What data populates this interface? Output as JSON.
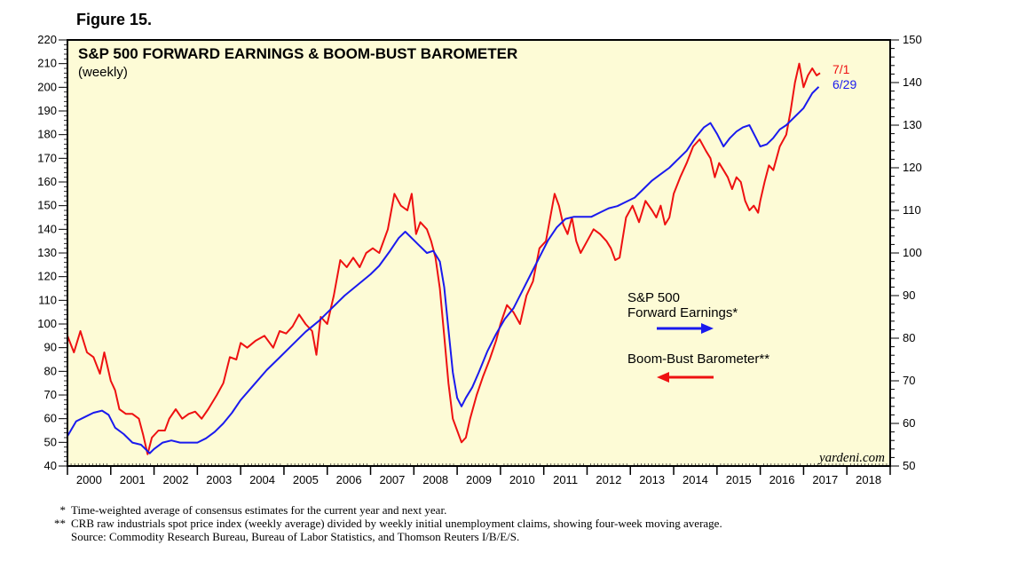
{
  "figure_label": "Figure 15.",
  "chart_data": {
    "type": "line",
    "title": "S&P 500 FORWARD EARNINGS & BOOM-BUST BAROMETER",
    "subtitle": "(weekly)",
    "watermark": "yardeni.com",
    "x_ticks": [
      "2000",
      "2001",
      "2002",
      "2003",
      "2004",
      "2005",
      "2006",
      "2007",
      "2008",
      "2009",
      "2010",
      "2011",
      "2012",
      "2013",
      "2014",
      "2015",
      "2016",
      "2017",
      "2018"
    ],
    "x_range": [
      2000,
      2019
    ],
    "left_axis": {
      "range": [
        40,
        220
      ],
      "ticks": [
        40,
        50,
        60,
        70,
        80,
        90,
        100,
        110,
        120,
        130,
        140,
        150,
        160,
        170,
        180,
        190,
        200,
        210,
        220
      ]
    },
    "right_axis": {
      "range": [
        50,
        150
      ],
      "ticks": [
        50,
        60,
        70,
        80,
        90,
        100,
        110,
        120,
        130,
        140,
        150
      ]
    },
    "background": "#fdfbd6",
    "series": [
      {
        "name": "Boom-Bust Barometer",
        "note": "**",
        "axis": "left",
        "color": "#ee1111",
        "end_label": "7/1",
        "points": [
          [
            2000.0,
            95
          ],
          [
            2000.15,
            88
          ],
          [
            2000.3,
            97
          ],
          [
            2000.45,
            88
          ],
          [
            2000.6,
            86
          ],
          [
            2000.75,
            79
          ],
          [
            2000.85,
            88
          ],
          [
            2001.0,
            76
          ],
          [
            2001.1,
            72
          ],
          [
            2001.2,
            64
          ],
          [
            2001.35,
            62
          ],
          [
            2001.5,
            62
          ],
          [
            2001.65,
            60
          ],
          [
            2001.75,
            53
          ],
          [
            2001.85,
            45
          ],
          [
            2001.95,
            52
          ],
          [
            2002.1,
            55
          ],
          [
            2002.25,
            55
          ],
          [
            2002.35,
            60
          ],
          [
            2002.5,
            64
          ],
          [
            2002.65,
            60
          ],
          [
            2002.8,
            62
          ],
          [
            2002.95,
            63
          ],
          [
            2003.1,
            60
          ],
          [
            2003.25,
            64
          ],
          [
            2003.45,
            70
          ],
          [
            2003.6,
            75
          ],
          [
            2003.75,
            86
          ],
          [
            2003.9,
            85
          ],
          [
            2004.0,
            92
          ],
          [
            2004.15,
            90
          ],
          [
            2004.35,
            93
          ],
          [
            2004.55,
            95
          ],
          [
            2004.75,
            90
          ],
          [
            2004.9,
            97
          ],
          [
            2005.05,
            96
          ],
          [
            2005.2,
            99
          ],
          [
            2005.35,
            104
          ],
          [
            2005.5,
            100
          ],
          [
            2005.65,
            97
          ],
          [
            2005.75,
            87
          ],
          [
            2005.85,
            103
          ],
          [
            2006.0,
            100
          ],
          [
            2006.15,
            112
          ],
          [
            2006.3,
            127
          ],
          [
            2006.45,
            124
          ],
          [
            2006.6,
            128
          ],
          [
            2006.75,
            124
          ],
          [
            2006.9,
            130
          ],
          [
            2007.05,
            132
          ],
          [
            2007.2,
            130
          ],
          [
            2007.4,
            140
          ],
          [
            2007.55,
            155
          ],
          [
            2007.7,
            150
          ],
          [
            2007.85,
            148
          ],
          [
            2007.95,
            155
          ],
          [
            2008.05,
            138
          ],
          [
            2008.15,
            143
          ],
          [
            2008.3,
            140
          ],
          [
            2008.4,
            135
          ],
          [
            2008.5,
            128
          ],
          [
            2008.6,
            115
          ],
          [
            2008.7,
            95
          ],
          [
            2008.8,
            75
          ],
          [
            2008.9,
            60
          ],
          [
            2009.0,
            55
          ],
          [
            2009.1,
            50
          ],
          [
            2009.2,
            52
          ],
          [
            2009.3,
            60
          ],
          [
            2009.45,
            70
          ],
          [
            2009.6,
            78
          ],
          [
            2009.75,
            85
          ],
          [
            2009.9,
            93
          ],
          [
            2010.0,
            100
          ],
          [
            2010.15,
            108
          ],
          [
            2010.3,
            105
          ],
          [
            2010.45,
            100
          ],
          [
            2010.6,
            112
          ],
          [
            2010.75,
            118
          ],
          [
            2010.9,
            132
          ],
          [
            2011.05,
            135
          ],
          [
            2011.15,
            145
          ],
          [
            2011.25,
            155
          ],
          [
            2011.35,
            150
          ],
          [
            2011.45,
            142
          ],
          [
            2011.55,
            138
          ],
          [
            2011.65,
            145
          ],
          [
            2011.75,
            135
          ],
          [
            2011.85,
            130
          ],
          [
            2012.0,
            135
          ],
          [
            2012.15,
            140
          ],
          [
            2012.3,
            138
          ],
          [
            2012.45,
            135
          ],
          [
            2012.55,
            132
          ],
          [
            2012.65,
            127
          ],
          [
            2012.75,
            128
          ],
          [
            2012.9,
            145
          ],
          [
            2013.05,
            150
          ],
          [
            2013.2,
            143
          ],
          [
            2013.35,
            152
          ],
          [
            2013.5,
            148
          ],
          [
            2013.6,
            145
          ],
          [
            2013.7,
            150
          ],
          [
            2013.8,
            142
          ],
          [
            2013.9,
            145
          ],
          [
            2014.0,
            155
          ],
          [
            2014.15,
            162
          ],
          [
            2014.3,
            168
          ],
          [
            2014.45,
            175
          ],
          [
            2014.6,
            178
          ],
          [
            2014.75,
            173
          ],
          [
            2014.85,
            170
          ],
          [
            2014.95,
            162
          ],
          [
            2015.05,
            168
          ],
          [
            2015.15,
            165
          ],
          [
            2015.25,
            162
          ],
          [
            2015.35,
            157
          ],
          [
            2015.45,
            162
          ],
          [
            2015.55,
            160
          ],
          [
            2015.65,
            152
          ],
          [
            2015.75,
            148
          ],
          [
            2015.85,
            150
          ],
          [
            2015.95,
            147
          ],
          [
            2016.0,
            152
          ],
          [
            2016.1,
            160
          ],
          [
            2016.2,
            167
          ],
          [
            2016.3,
            165
          ],
          [
            2016.45,
            175
          ],
          [
            2016.6,
            180
          ],
          [
            2016.7,
            190
          ],
          [
            2016.8,
            202
          ],
          [
            2016.9,
            210
          ],
          [
            2017.0,
            200
          ],
          [
            2017.1,
            205
          ],
          [
            2017.2,
            208
          ],
          [
            2017.3,
            205
          ],
          [
            2017.38,
            206
          ]
        ]
      },
      {
        "name": "S&P 500 Forward Earnings",
        "note": "*",
        "axis": "right",
        "color": "#1a1aee",
        "end_label": "6/29",
        "points": [
          [
            2000.0,
            57.0
          ],
          [
            2000.2,
            60.5
          ],
          [
            2000.4,
            61.5
          ],
          [
            2000.6,
            62.5
          ],
          [
            2000.8,
            63.0
          ],
          [
            2000.95,
            62.0
          ],
          [
            2001.1,
            59.0
          ],
          [
            2001.3,
            57.5
          ],
          [
            2001.5,
            55.5
          ],
          [
            2001.7,
            55.0
          ],
          [
            2001.9,
            53.0
          ],
          [
            2002.0,
            54.0
          ],
          [
            2002.2,
            55.5
          ],
          [
            2002.4,
            56.0
          ],
          [
            2002.6,
            55.5
          ],
          [
            2002.8,
            55.5
          ],
          [
            2003.0,
            55.5
          ],
          [
            2003.2,
            56.5
          ],
          [
            2003.4,
            58.0
          ],
          [
            2003.6,
            60.0
          ],
          [
            2003.8,
            62.5
          ],
          [
            2004.0,
            65.5
          ],
          [
            2004.3,
            69.0
          ],
          [
            2004.6,
            72.5
          ],
          [
            2004.9,
            75.5
          ],
          [
            2005.2,
            78.5
          ],
          [
            2005.5,
            81.5
          ],
          [
            2005.8,
            84.0
          ],
          [
            2006.1,
            87.0
          ],
          [
            2006.4,
            90.0
          ],
          [
            2006.7,
            92.5
          ],
          [
            2007.0,
            95.0
          ],
          [
            2007.2,
            97.0
          ],
          [
            2007.45,
            100.5
          ],
          [
            2007.65,
            103.5
          ],
          [
            2007.8,
            105.0
          ],
          [
            2007.95,
            103.5
          ],
          [
            2008.1,
            102.0
          ],
          [
            2008.3,
            100.0
          ],
          [
            2008.45,
            100.5
          ],
          [
            2008.6,
            98.0
          ],
          [
            2008.7,
            92.0
          ],
          [
            2008.8,
            82.0
          ],
          [
            2008.9,
            72.0
          ],
          [
            2009.0,
            66.0
          ],
          [
            2009.1,
            64.0
          ],
          [
            2009.2,
            66.0
          ],
          [
            2009.35,
            68.5
          ],
          [
            2009.5,
            72.0
          ],
          [
            2009.7,
            77.0
          ],
          [
            2009.9,
            81.0
          ],
          [
            2010.1,
            84.5
          ],
          [
            2010.3,
            87.0
          ],
          [
            2010.5,
            91.0
          ],
          [
            2010.7,
            95.0
          ],
          [
            2010.9,
            99.0
          ],
          [
            2011.1,
            103.0
          ],
          [
            2011.3,
            106.0
          ],
          [
            2011.5,
            108.0
          ],
          [
            2011.7,
            108.5
          ],
          [
            2011.9,
            108.5
          ],
          [
            2012.1,
            108.5
          ],
          [
            2012.3,
            109.5
          ],
          [
            2012.5,
            110.5
          ],
          [
            2012.7,
            111.0
          ],
          [
            2012.9,
            112.0
          ],
          [
            2013.1,
            113.0
          ],
          [
            2013.3,
            115.0
          ],
          [
            2013.5,
            117.0
          ],
          [
            2013.7,
            118.5
          ],
          [
            2013.9,
            120.0
          ],
          [
            2014.1,
            122.0
          ],
          [
            2014.3,
            124.0
          ],
          [
            2014.5,
            127.0
          ],
          [
            2014.7,
            129.5
          ],
          [
            2014.85,
            130.5
          ],
          [
            2015.0,
            128.0
          ],
          [
            2015.15,
            125.0
          ],
          [
            2015.3,
            127.0
          ],
          [
            2015.45,
            128.5
          ],
          [
            2015.6,
            129.5
          ],
          [
            2015.75,
            130.0
          ],
          [
            2015.9,
            127.0
          ],
          [
            2016.0,
            125.0
          ],
          [
            2016.15,
            125.5
          ],
          [
            2016.3,
            127.0
          ],
          [
            2016.45,
            129.0
          ],
          [
            2016.6,
            130.0
          ],
          [
            2016.8,
            132.0
          ],
          [
            2017.0,
            134.0
          ],
          [
            2017.2,
            137.5
          ],
          [
            2017.35,
            139.0
          ]
        ]
      }
    ],
    "legend": [
      {
        "label_line1": "S&P 500",
        "label_line2": "Forward Earnings*",
        "color": "#1a1aee",
        "direction": "right"
      },
      {
        "label_line1": "Boom-Bust Barometer**",
        "label_line2": "",
        "color": "#ee1111",
        "direction": "left"
      }
    ]
  },
  "footnotes": [
    {
      "mark": "*",
      "text": "Time-weighted average of consensus estimates for the current year and next year."
    },
    {
      "mark": "**",
      "text": "CRB raw industrials spot price index (weekly average) divided by weekly initial unemployment claims, showing four-week moving average."
    },
    {
      "mark": "",
      "text": "Source: Commodity Research Bureau, Bureau of Labor Statistics, and Thomson Reuters I/B/E/S."
    }
  ]
}
